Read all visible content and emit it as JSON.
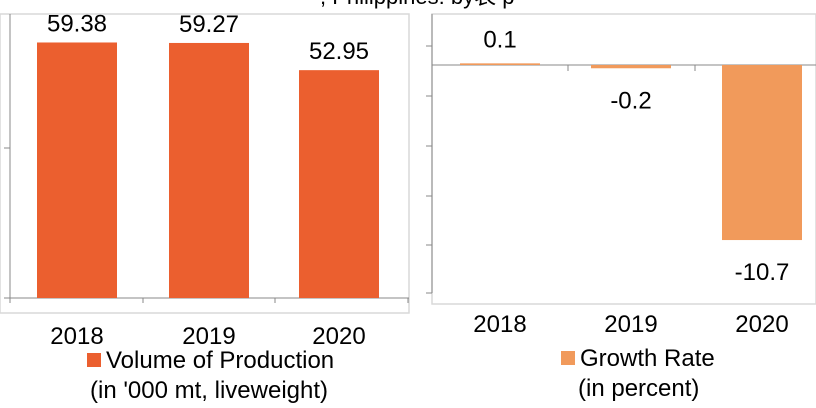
{
  "header_fragment": ", Philippines: by表 p",
  "chart_data": [
    {
      "type": "bar",
      "categories": [
        "2018",
        "2019",
        "2020"
      ],
      "values": [
        59.38,
        59.27,
        52.95
      ],
      "data_labels": [
        "59.38",
        "59.27",
        "52.95"
      ],
      "ylim": [
        0,
        66
      ],
      "grid": false,
      "legend": {
        "line1": "Volume of Production",
        "line2": "(in '000 mt, liveweight)",
        "position": "bottom",
        "color": "#EB5F2F"
      }
    },
    {
      "type": "bar",
      "categories": [
        "2018",
        "2019",
        "2020"
      ],
      "values": [
        0.1,
        -0.2,
        -10.7
      ],
      "data_labels": [
        "0.1",
        "-0.2",
        "-10.7"
      ],
      "ylim": [
        -14,
        2
      ],
      "grid": false,
      "legend": {
        "line1": "Growth Rate",
        "line2": "(in percent)",
        "position": "bottom",
        "color": "#F19A5B"
      }
    }
  ]
}
